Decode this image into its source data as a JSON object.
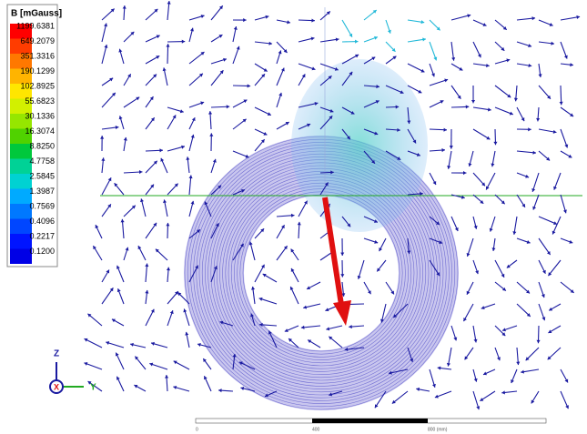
{
  "legend": {
    "title": "B [mGauss]",
    "entries": [
      {
        "label": "1199.6381",
        "color": "#ff0000"
      },
      {
        "label": "649.2079",
        "color": "#ff3c00"
      },
      {
        "label": "351.3316",
        "color": "#ff7800"
      },
      {
        "label": "190.1299",
        "color": "#ffb400"
      },
      {
        "label": "102.8925",
        "color": "#ffe600"
      },
      {
        "label": "55.6823",
        "color": "#d2f000"
      },
      {
        "label": "30.1336",
        "color": "#96e600"
      },
      {
        "label": "16.3074",
        "color": "#50d200"
      },
      {
        "label": "8.8250",
        "color": "#00c83c"
      },
      {
        "label": "4.7758",
        "color": "#00d296"
      },
      {
        "label": "2.5845",
        "color": "#00d2d2"
      },
      {
        "label": "1.3987",
        "color": "#00aaff"
      },
      {
        "label": "0.7569",
        "color": "#0078ff"
      },
      {
        "label": "0.4096",
        "color": "#0046ff"
      },
      {
        "label": "0.2217",
        "color": "#0014ff"
      },
      {
        "label": "0.1200",
        "color": "#0000e6"
      }
    ]
  },
  "axes": {
    "z": "Z",
    "x": "X",
    "y": "Y"
  },
  "scale_bar": {
    "labels": [
      "0",
      "400",
      "800 (mm)"
    ]
  }
}
